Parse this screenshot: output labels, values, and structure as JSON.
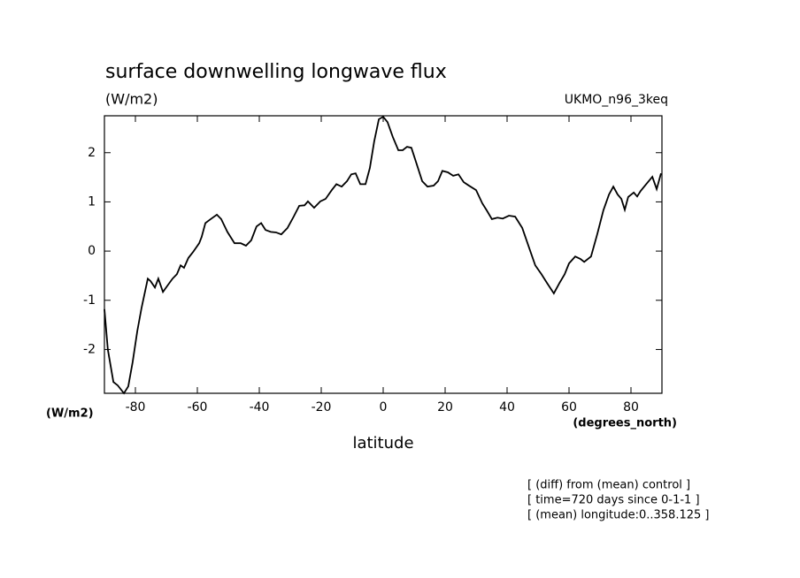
{
  "chart_data": {
    "type": "line",
    "title": "surface downwelling longwave flux",
    "subtitle": "(W/m2)",
    "annotation": "UKMO_n96_3keq",
    "ylabel": "(W/m2)",
    "xlabel": "latitude",
    "x_unit": "(degrees_north)",
    "notes": [
      "[ (diff) from (mean) control ]",
      "[ time=720 days since 0-1-1 ]",
      "[ (mean) longitude:0..358.125 ]"
    ],
    "xlim": [
      -90,
      90
    ],
    "ylim": [
      -2.89,
      2.75
    ],
    "xticks": [
      -80,
      -60,
      -40,
      -20,
      0,
      20,
      40,
      60,
      80
    ],
    "yticks": [
      -2,
      -1,
      0,
      1,
      2
    ],
    "x": [
      -90,
      -88.9,
      -87.1,
      -85.7,
      -83.7,
      -82.3,
      -80.9,
      -79.4,
      -78,
      -76,
      -75.1,
      -73.7,
      -72.6,
      -71.1,
      -69.4,
      -68,
      -66.6,
      -65.4,
      -64.3,
      -62.9,
      -61.4,
      -59.4,
      -58.6,
      -57.4,
      -55.7,
      -53.7,
      -52.3,
      -50.3,
      -48,
      -46,
      -44.3,
      -42.6,
      -40.9,
      -39.4,
      -38,
      -36.3,
      -34.6,
      -32.9,
      -30.9,
      -28.9,
      -27.1,
      -25.4,
      -24.3,
      -22.3,
      -20.3,
      -18.6,
      -16.6,
      -15.1,
      -13.4,
      -11.7,
      -10.3,
      -8.9,
      -7.4,
      -5.7,
      -4.3,
      -2.9,
      -1.4,
      0,
      1.4,
      3.1,
      4.9,
      6.3,
      7.7,
      9.1,
      10.6,
      12.6,
      14.3,
      16.3,
      17.7,
      19.1,
      20.9,
      22.6,
      24.3,
      26,
      27.7,
      30,
      32,
      33.4,
      35.1,
      36.9,
      38.6,
      40.6,
      42.6,
      44.9,
      47.1,
      49.1,
      51.1,
      52.9,
      55.1,
      56.9,
      58.6,
      60,
      62,
      63.7,
      64.9,
      67.1,
      69.1,
      71.1,
      72.9,
      74.3,
      75.7,
      76.9,
      78,
      79.1,
      80.9,
      82,
      83.1,
      84.9,
      86.9,
      88.3,
      89.7
    ],
    "series": [
      {
        "name": "UKMO_n96_3keq",
        "color": "#000000",
        "values": [
          -1.18,
          -2.0,
          -2.66,
          -2.73,
          -2.89,
          -2.75,
          -2.26,
          -1.63,
          -1.15,
          -0.56,
          -0.61,
          -0.74,
          -0.56,
          -0.83,
          -0.68,
          -0.56,
          -0.47,
          -0.29,
          -0.34,
          -0.14,
          -0.02,
          0.16,
          0.29,
          0.57,
          0.65,
          0.74,
          0.65,
          0.39,
          0.16,
          0.16,
          0.11,
          0.22,
          0.5,
          0.57,
          0.43,
          0.39,
          0.38,
          0.34,
          0.47,
          0.7,
          0.92,
          0.93,
          1.01,
          0.88,
          1.01,
          1.06,
          1.24,
          1.36,
          1.31,
          1.42,
          1.56,
          1.58,
          1.36,
          1.36,
          1.69,
          2.23,
          2.68,
          2.73,
          2.62,
          2.32,
          2.05,
          2.05,
          2.12,
          2.1,
          1.81,
          1.42,
          1.31,
          1.33,
          1.42,
          1.63,
          1.6,
          1.53,
          1.56,
          1.4,
          1.33,
          1.24,
          0.97,
          0.83,
          0.65,
          0.68,
          0.66,
          0.72,
          0.7,
          0.47,
          0.07,
          -0.29,
          -0.47,
          -0.65,
          -0.86,
          -0.65,
          -0.47,
          -0.25,
          -0.11,
          -0.16,
          -0.22,
          -0.11,
          0.34,
          0.83,
          1.15,
          1.31,
          1.15,
          1.06,
          0.84,
          1.1,
          1.19,
          1.11,
          1.22,
          1.36,
          1.51,
          1.26,
          1.58
        ]
      }
    ]
  }
}
